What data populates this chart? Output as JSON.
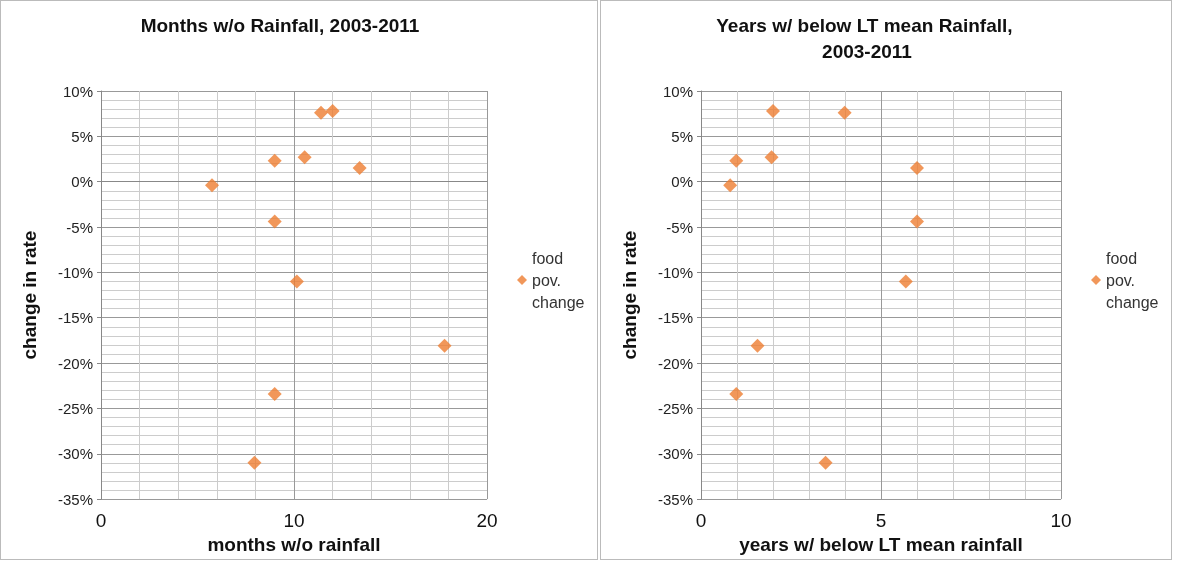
{
  "chart_data": [
    {
      "type": "scatter",
      "title": "Months w/o Rainfall, 2003-2011",
      "xlabel": "months w/o rainfall",
      "ylabel": "change in rate",
      "marker": "diamond",
      "grid": true,
      "legend": "right",
      "xlim": [
        0,
        20
      ],
      "xticks": [
        0,
        10,
        20
      ],
      "ylim": [
        -35,
        10
      ],
      "yticks": [
        {
          "value": -35,
          "label": "-35%"
        },
        {
          "value": -30,
          "label": "-30%"
        },
        {
          "value": -25,
          "label": "-25%"
        },
        {
          "value": -20,
          "label": "-20%"
        },
        {
          "value": -15,
          "label": "-15%"
        },
        {
          "value": -10,
          "label": "-10%"
        },
        {
          "value": -5,
          "label": "-5%"
        },
        {
          "value": 0,
          "label": "0%"
        },
        {
          "value": 5,
          "label": "5%"
        },
        {
          "value": 10,
          "label": "10%"
        }
      ],
      "series": [
        {
          "name": "food pov. change",
          "color": "#ed7d31",
          "x": [
            5.75,
            9.0,
            10.55,
            11.4,
            12.0,
            13.4,
            9.0,
            10.15,
            17.8,
            9.0,
            7.95
          ],
          "values": [
            -0.4,
            2.3,
            2.7,
            7.6,
            7.8,
            1.5,
            -4.4,
            -11.0,
            -18.1,
            -23.4,
            -31.0
          ]
        }
      ]
    },
    {
      "type": "scatter",
      "title": "Years w/ below LT mean Rainfall, 2003-2011",
      "xlabel": "years w/ below LT mean rainfall",
      "ylabel": "change in rate",
      "marker": "diamond",
      "grid": true,
      "legend": "right",
      "xlim": [
        0,
        10
      ],
      "xticks": [
        0,
        5,
        10
      ],
      "ylim": [
        -35,
        10
      ],
      "yticks": [
        {
          "value": -35,
          "label": "-35%"
        },
        {
          "value": -30,
          "label": "-30%"
        },
        {
          "value": -25,
          "label": "-25%"
        },
        {
          "value": -20,
          "label": "-20%"
        },
        {
          "value": -15,
          "label": "-15%"
        },
        {
          "value": -10,
          "label": "-10%"
        },
        {
          "value": -5,
          "label": "-5%"
        },
        {
          "value": 0,
          "label": "0%"
        },
        {
          "value": 5,
          "label": "5%"
        },
        {
          "value": 10,
          "label": "10%"
        }
      ],
      "series": [
        {
          "name": "food pov. change",
          "color": "#ed7d31",
          "x": [
            0.81,
            0.98,
            1.96,
            2.0,
            3.99,
            6.0,
            6.0,
            5.69,
            1.57,
            0.98,
            3.46
          ],
          "values": [
            -0.4,
            2.3,
            2.7,
            7.8,
            7.6,
            1.5,
            -4.4,
            -11.0,
            -18.1,
            -23.4,
            -31.0
          ]
        }
      ]
    }
  ]
}
